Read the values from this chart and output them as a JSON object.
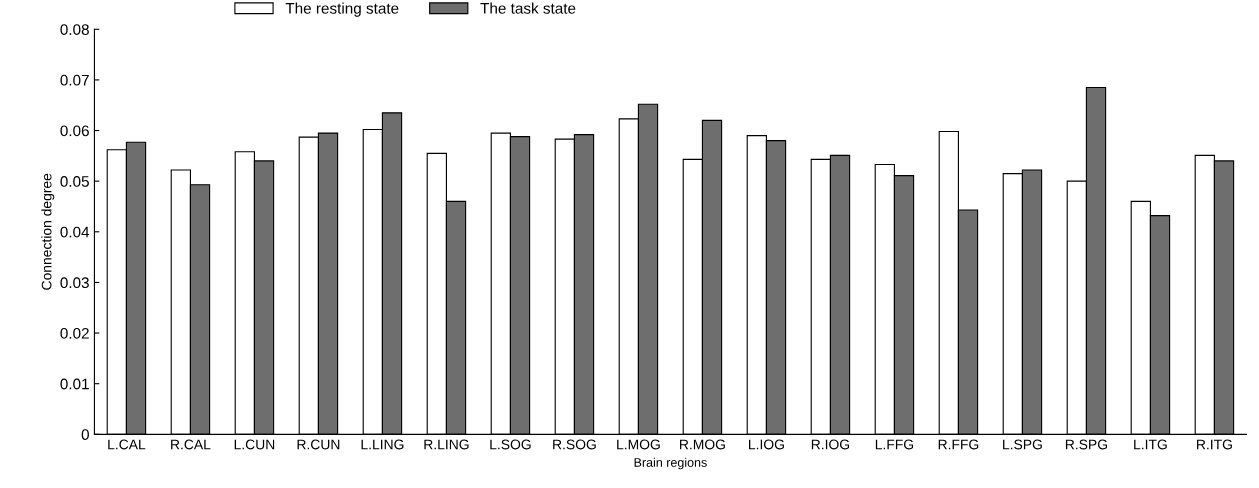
{
  "chart_data": {
    "type": "bar",
    "xlabel": "Brain regions",
    "ylabel": "Connection degree",
    "categories": [
      "L.CAL",
      "R.CAL",
      "L.CUN",
      "R.CUN",
      "L.LING",
      "R.LING",
      "L.SOG",
      "R.SOG",
      "L.MOG",
      "R.MOG",
      "L.IOG",
      "R.IOG",
      "L.FFG",
      "R.FFG",
      "L.SPG",
      "R.SPG",
      "L.ITG",
      "R.ITG"
    ],
    "series": [
      {
        "name": "The resting state",
        "color": "#ffffff",
        "values": [
          0.0562,
          0.0522,
          0.0558,
          0.0587,
          0.0602,
          0.0555,
          0.0595,
          0.0583,
          0.0623,
          0.0543,
          0.059,
          0.0543,
          0.0533,
          0.0598,
          0.0515,
          0.05,
          0.046,
          0.0551
        ]
      },
      {
        "name": "The task state",
        "color": "#6e6e6e",
        "values": [
          0.0577,
          0.0493,
          0.054,
          0.0595,
          0.0635,
          0.046,
          0.0588,
          0.0592,
          0.0652,
          0.062,
          0.058,
          0.0551,
          0.0511,
          0.0443,
          0.0522,
          0.0685,
          0.0432,
          0.054
        ]
      }
    ],
    "ylim": [
      0,
      0.08
    ],
    "yticks": [
      {
        "value": 0,
        "label": "0"
      },
      0.01,
      0.02,
      0.03,
      0.04,
      0.05,
      0.06,
      0.07,
      0.08
    ],
    "grid": false,
    "legend": "top"
  }
}
